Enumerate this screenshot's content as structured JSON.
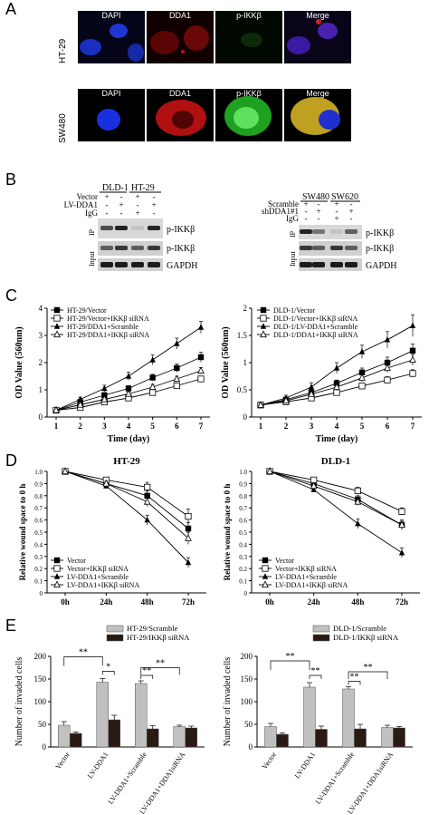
{
  "panel_labels": {
    "a": "A",
    "b": "B",
    "c": "C",
    "d": "D",
    "e": "E"
  },
  "panelA": {
    "channels": [
      "DAPI",
      "DDA1",
      "p-IKKβ",
      "Merge"
    ],
    "rows": [
      {
        "label": "HT-29"
      },
      {
        "label": "SW480"
      }
    ]
  },
  "panelB": {
    "left": {
      "cell_lines": [
        "DLD-1",
        "HT-29"
      ],
      "cond_rows": [
        {
          "label": "Vector",
          "marks": [
            "+",
            "-",
            "+",
            "-"
          ]
        },
        {
          "label": "LV-DDA1",
          "marks": [
            "-",
            "+",
            "-",
            "+"
          ]
        },
        {
          "label": "IgG",
          "marks": [
            "-",
            "-",
            "+",
            "-"
          ]
        }
      ],
      "ip_label": "IP",
      "input_label": "Input",
      "band_labels": [
        "p-IKKβ",
        "p-IKKβ",
        "GAPDH"
      ]
    },
    "right": {
      "cell_lines": [
        "SW480",
        "SW620"
      ],
      "cond_rows": [
        {
          "label": "Scramble",
          "marks": [
            "+",
            "-",
            "+",
            "-"
          ]
        },
        {
          "label": "shDDA1#1",
          "marks": [
            "-",
            "+",
            "-",
            "+"
          ]
        },
        {
          "label": "IgG",
          "marks": [
            "-",
            "-",
            "+",
            "-"
          ]
        }
      ],
      "ip_label": "IP",
      "input_label": "Input",
      "band_labels": [
        "p-IKKβ",
        "p-IKKβ",
        "GAPDH"
      ]
    }
  },
  "chart_data": [
    {
      "id": "C-left",
      "type": "line",
      "ylabel": "OD Value (560nm)",
      "xlabel": "Time (day)",
      "x": [
        1,
        2,
        3,
        4,
        5,
        6,
        7
      ],
      "ylim": [
        0,
        4
      ],
      "yticks": [
        "0",
        "1",
        "2",
        "3",
        "4"
      ],
      "xticks": [
        "1",
        "2",
        "3",
        "4",
        "5",
        "6",
        "7"
      ],
      "legend_position": "top-left",
      "series": [
        {
          "name": "HT-29/Vector",
          "marker": "filled-square",
          "values": [
            0.25,
            0.55,
            0.8,
            1.05,
            1.45,
            1.8,
            2.2
          ],
          "err": [
            0.05,
            0.08,
            0.1,
            0.1,
            0.12,
            0.15,
            0.18
          ]
        },
        {
          "name": "HT-29/Vector+IKKβ siRNA",
          "marker": "open-square",
          "values": [
            0.25,
            0.35,
            0.55,
            0.7,
            0.9,
            1.15,
            1.4
          ],
          "err": [
            0.05,
            0.05,
            0.06,
            0.06,
            0.08,
            0.08,
            0.1
          ]
        },
        {
          "name": "HT-29/DDA1+Scramble",
          "marker": "filled-triangle",
          "values": [
            0.25,
            0.65,
            1.05,
            1.5,
            2.1,
            2.7,
            3.3
          ],
          "err": [
            0.05,
            0.08,
            0.12,
            0.15,
            0.18,
            0.2,
            0.22
          ]
        },
        {
          "name": "HT-29/DDA1+IKKβ siRNA",
          "marker": "open-triangle",
          "values": [
            0.25,
            0.45,
            0.65,
            0.85,
            1.1,
            1.4,
            1.7
          ],
          "err": [
            0.05,
            0.06,
            0.06,
            0.08,
            0.1,
            0.1,
            0.12
          ]
        }
      ]
    },
    {
      "id": "C-right",
      "type": "line",
      "ylabel": "OD Value (560nm)",
      "xlabel": "Time (day)",
      "x": [
        1,
        2,
        3,
        4,
        5,
        6,
        7
      ],
      "ylim": [
        0,
        2
      ],
      "yticks": [
        "0",
        "0.5",
        "1",
        "1.5",
        "2"
      ],
      "xticks": [
        "1",
        "2",
        "3",
        "4",
        "5",
        "6",
        "7"
      ],
      "legend_position": "top-left",
      "series": [
        {
          "name": "DLD-1/Vector",
          "marker": "filled-square",
          "values": [
            0.22,
            0.32,
            0.45,
            0.62,
            0.82,
            1.0,
            1.22
          ],
          "err": [
            0.03,
            0.04,
            0.05,
            0.06,
            0.08,
            0.1,
            0.12
          ]
        },
        {
          "name": "DLD-1/Vector+IKKβ siRNA",
          "marker": "open-square",
          "values": [
            0.22,
            0.28,
            0.35,
            0.45,
            0.57,
            0.68,
            0.8
          ],
          "err": [
            0.03,
            0.03,
            0.04,
            0.05,
            0.05,
            0.06,
            0.07
          ]
        },
        {
          "name": "DLD-1/LV-DDA1+Scramble",
          "marker": "filled-triangle",
          "values": [
            0.22,
            0.35,
            0.55,
            0.9,
            1.2,
            1.42,
            1.68
          ],
          "err": [
            0.03,
            0.05,
            0.08,
            0.1,
            0.12,
            0.15,
            0.2
          ]
        },
        {
          "name": "DLD-1/DDA1+IKKβ siRNA",
          "marker": "open-triangle",
          "values": [
            0.22,
            0.3,
            0.42,
            0.55,
            0.72,
            0.9,
            1.05
          ],
          "err": [
            0.03,
            0.04,
            0.05,
            0.06,
            0.07,
            0.08,
            0.1
          ]
        }
      ]
    },
    {
      "id": "D-left",
      "type": "line",
      "title": "HT-29",
      "ylabel": "Relative wound space to 0 h",
      "x": [
        "0h",
        "24h",
        "48h",
        "72h"
      ],
      "ylim": [
        0,
        1.0
      ],
      "yticks": [
        "0",
        "0.1",
        "0.2",
        "0.3",
        "0.4",
        "0.5",
        "0.6",
        "0.7",
        "0.8",
        "0.9",
        "1.0"
      ],
      "legend_position": "bottom-left",
      "series": [
        {
          "name": "Vector",
          "marker": "filled-square",
          "values": [
            1.0,
            0.9,
            0.8,
            0.53
          ],
          "err": [
            0,
            0.02,
            0.04,
            0.05
          ]
        },
        {
          "name": "Vector+IKKβ siRNA",
          "marker": "open-square",
          "values": [
            1.0,
            0.93,
            0.87,
            0.63
          ],
          "err": [
            0,
            0.02,
            0.04,
            0.06
          ]
        },
        {
          "name": "LV-DDA1+Scramble",
          "marker": "filled-triangle",
          "values": [
            1.0,
            0.88,
            0.6,
            0.25
          ],
          "err": [
            0,
            0.02,
            0.04,
            0.04
          ]
        },
        {
          "name": "LV-DDA1+IKKβ siRNA",
          "marker": "open-triangle",
          "values": [
            1.0,
            0.9,
            0.75,
            0.45
          ],
          "err": [
            0,
            0.02,
            0.04,
            0.05
          ]
        }
      ]
    },
    {
      "id": "D-right",
      "type": "line",
      "title": "DLD-1",
      "ylabel": "Relative wound space to 0 h",
      "x": [
        "0h",
        "24h",
        "48h",
        "72h"
      ],
      "ylim": [
        0,
        1.0
      ],
      "yticks": [
        "0",
        "0.1",
        "0.2",
        "0.3",
        "0.4",
        "0.5",
        "0.6",
        "0.7",
        "0.8",
        "0.9",
        "1.0"
      ],
      "legend_position": "bottom-left",
      "series": [
        {
          "name": "Vector",
          "marker": "filled-square",
          "values": [
            1.0,
            0.9,
            0.77,
            0.56
          ],
          "err": [
            0,
            0.02,
            0.03,
            0.03
          ]
        },
        {
          "name": "Vector+IKKβ siRNA",
          "marker": "open-square",
          "values": [
            1.0,
            0.93,
            0.84,
            0.67
          ],
          "err": [
            0,
            0.02,
            0.03,
            0.03
          ]
        },
        {
          "name": "LV-DDA1+Scramble",
          "marker": "filled-triangle",
          "values": [
            1.0,
            0.85,
            0.57,
            0.33
          ],
          "err": [
            0,
            0.02,
            0.04,
            0.04
          ]
        },
        {
          "name": "LV-DDA1+IKKβ siRNA",
          "marker": "open-triangle",
          "values": [
            1.0,
            0.88,
            0.75,
            0.56
          ],
          "err": [
            0,
            0.02,
            0.03,
            0.04
          ]
        }
      ]
    },
    {
      "id": "E-left",
      "type": "bar",
      "ylabel": "Number of invaded cells",
      "ylim": [
        0,
        200
      ],
      "yticks": [
        "0",
        "50",
        "100",
        "150",
        "200"
      ],
      "categories": [
        "Vector",
        "LV-DDA1",
        "LV-DDA1+Scramble",
        "LV-DDA1+DDA1siRNA"
      ],
      "legend_position": "top-right",
      "series": [
        {
          "name": "HT-29/Scramble",
          "color": "#c0c0c0",
          "values": [
            48,
            143,
            140,
            45
          ],
          "err": [
            8,
            8,
            6,
            3
          ]
        },
        {
          "name": "HT-29/IKKβ siRNA",
          "color": "#2a1a14",
          "values": [
            30,
            60,
            40,
            42
          ],
          "err": [
            3,
            10,
            7,
            4
          ]
        }
      ],
      "sig": [
        "**",
        "*",
        "**",
        "**"
      ]
    },
    {
      "id": "E-right",
      "type": "bar",
      "ylabel": "Number of invaded cells",
      "ylim": [
        0,
        200
      ],
      "yticks": [
        "0",
        "50",
        "100",
        "150",
        "200"
      ],
      "categories": [
        "Vector",
        "LV-DDA1",
        "LV-DDA1+Scramble",
        "LV-DDA1+DDA1siRNA"
      ],
      "legend_position": "top-right",
      "series": [
        {
          "name": "DLD-1/Scramble",
          "color": "#c0c0c0",
          "values": [
            45,
            132,
            128,
            43
          ],
          "err": [
            7,
            10,
            5,
            5
          ]
        },
        {
          "name": "DLD-1/IKKβ siRNA",
          "color": "#2a1a14",
          "values": [
            28,
            39,
            40,
            42
          ],
          "err": [
            3,
            7,
            10,
            3
          ]
        }
      ],
      "sig": [
        "**",
        "**",
        "**",
        "**"
      ]
    }
  ]
}
